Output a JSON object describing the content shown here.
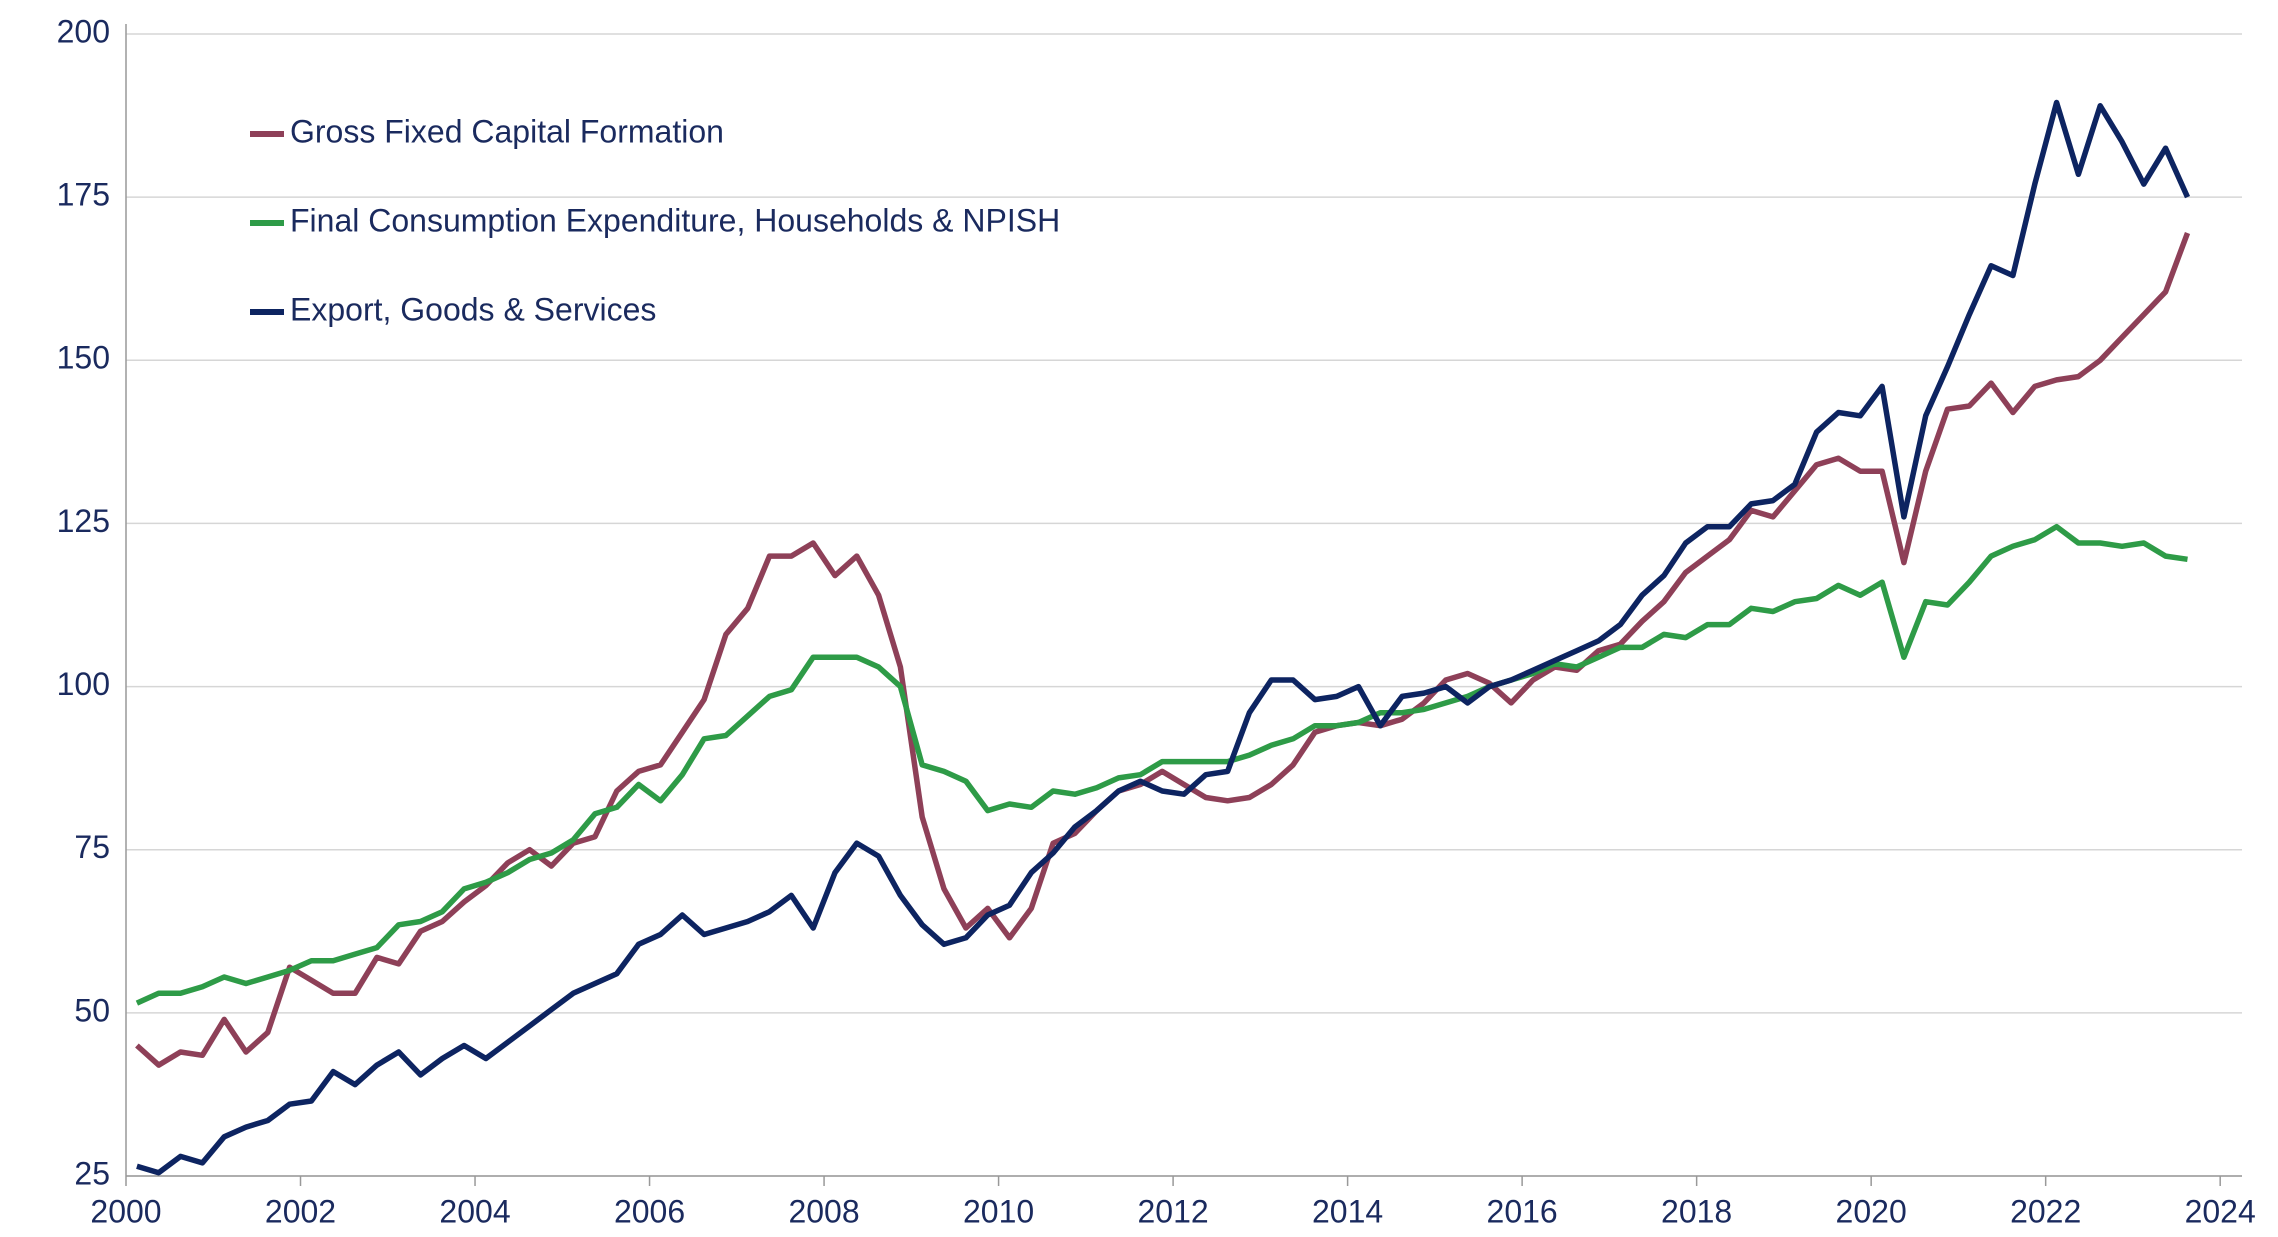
{
  "chart_data": {
    "type": "line",
    "x": [
      2000.125,
      2000.375,
      2000.625,
      2000.875,
      2001.125,
      2001.375,
      2001.625,
      2001.875,
      2002.125,
      2002.375,
      2002.625,
      2002.875,
      2003.125,
      2003.375,
      2003.625,
      2003.875,
      2004.125,
      2004.375,
      2004.625,
      2004.875,
      2005.125,
      2005.375,
      2005.625,
      2005.875,
      2006.125,
      2006.375,
      2006.625,
      2006.875,
      2007.125,
      2007.375,
      2007.625,
      2007.875,
      2008.125,
      2008.375,
      2008.625,
      2008.875,
      2009.125,
      2009.375,
      2009.625,
      2009.875,
      2010.125,
      2010.375,
      2010.625,
      2010.875,
      2011.125,
      2011.375,
      2011.625,
      2011.875,
      2012.125,
      2012.375,
      2012.625,
      2012.875,
      2013.125,
      2013.375,
      2013.625,
      2013.875,
      2014.125,
      2014.375,
      2014.625,
      2014.875,
      2015.125,
      2015.375,
      2015.625,
      2015.875,
      2016.125,
      2016.375,
      2016.625,
      2016.875,
      2017.125,
      2017.375,
      2017.625,
      2017.875,
      2018.125,
      2018.375,
      2018.625,
      2018.875,
      2019.125,
      2019.375,
      2019.625,
      2019.875,
      2020.125,
      2020.375,
      2020.625,
      2020.875,
      2021.125,
      2021.375,
      2021.625,
      2021.875,
      2022.125,
      2022.375,
      2022.625,
      2022.875,
      2023.125,
      2023.375,
      2023.625
    ],
    "series": [
      {
        "name": "Gross Fixed Capital Formation",
        "color": "#8e4058",
        "values": [
          45,
          42,
          44,
          43.5,
          49,
          44,
          47,
          57,
          55,
          53,
          53,
          58.5,
          57.5,
          62.5,
          64,
          67,
          69.5,
          73,
          75,
          72.5,
          76,
          77,
          84,
          87,
          88,
          93,
          98,
          108,
          112,
          120,
          120,
          122,
          117,
          120,
          114,
          103,
          80,
          69,
          63,
          66,
          61.5,
          66,
          76,
          77.5,
          81,
          84,
          85,
          87,
          85,
          83,
          82.5,
          83,
          85,
          88,
          93,
          94,
          94.5,
          94,
          95,
          97.5,
          101,
          102,
          100.5,
          97.5,
          101,
          103,
          102.5,
          105.5,
          106.5,
          110,
          113,
          117.5,
          120,
          122.5,
          127,
          126,
          130,
          134,
          135,
          133,
          133,
          119,
          133,
          142.5,
          143,
          146.5,
          142,
          146,
          147,
          147.5,
          150,
          153.5,
          157,
          160.5,
          169.5
        ]
      },
      {
        "name": "Final Consumption Expenditure, Households & NPISH",
        "color": "#2e9b47",
        "values": [
          51.5,
          53,
          53,
          54,
          55.5,
          54.5,
          55.5,
          56.5,
          58,
          58,
          59,
          60,
          63.5,
          64,
          65.5,
          69,
          70,
          71.5,
          73.5,
          74.5,
          76.5,
          80.5,
          81.5,
          85,
          82.5,
          86.5,
          92,
          92.5,
          95.5,
          98.5,
          99.5,
          104.5,
          104.5,
          104.5,
          103,
          100,
          88,
          87,
          85.5,
          81,
          82,
          81.5,
          84,
          83.5,
          84.5,
          86,
          86.5,
          88.5,
          88.5,
          88.5,
          88.5,
          89.5,
          91,
          92,
          94,
          94,
          94.5,
          96,
          96,
          96.5,
          97.5,
          98.5,
          100,
          101,
          102,
          103.5,
          103,
          104.5,
          106,
          106,
          108,
          107.5,
          109.5,
          109.5,
          112,
          111.5,
          113,
          113.5,
          115.5,
          114,
          116,
          104.5,
          113,
          112.5,
          116,
          120,
          121.5,
          122.5,
          124.5,
          122,
          122,
          121.5,
          122,
          120,
          119.5
        ]
      },
      {
        "name": "Export, Goods & Services",
        "color": "#0d2461",
        "values": [
          26.5,
          25.5,
          28,
          27,
          31,
          32.5,
          33.5,
          36,
          36.5,
          41,
          39,
          42,
          44,
          40.5,
          43,
          45,
          43,
          45.5,
          48,
          50.5,
          53,
          54.5,
          56,
          60.5,
          62,
          65,
          62,
          63,
          64,
          65.5,
          68,
          63,
          71.5,
          76,
          74,
          68,
          63.5,
          60.5,
          61.5,
          65,
          66.5,
          71.5,
          74.5,
          78.5,
          81,
          84,
          85.5,
          84,
          83.5,
          86.5,
          87,
          96,
          101,
          101,
          98,
          98.5,
          100,
          94,
          98.5,
          99,
          100,
          97.5,
          100,
          101,
          102.5,
          104,
          105.5,
          107,
          109.5,
          114,
          117,
          122,
          124.5,
          124.5,
          128,
          128.5,
          131,
          139,
          142,
          141.5,
          146,
          126,
          141.5,
          149,
          157,
          164.5,
          163,
          177,
          189.5,
          178.5,
          189,
          183.5,
          177,
          182.5,
          175
        ]
      }
    ],
    "xlim": [
      2000,
      2024.25
    ],
    "xticks": [
      2000,
      2002,
      2004,
      2006,
      2008,
      2010,
      2012,
      2014,
      2016,
      2018,
      2020,
      2022,
      2024
    ],
    "ylim": [
      25,
      200
    ],
    "yticks": [
      25,
      50,
      75,
      100,
      125,
      150,
      175,
      200
    ],
    "grid": true,
    "legend": "upper left"
  }
}
